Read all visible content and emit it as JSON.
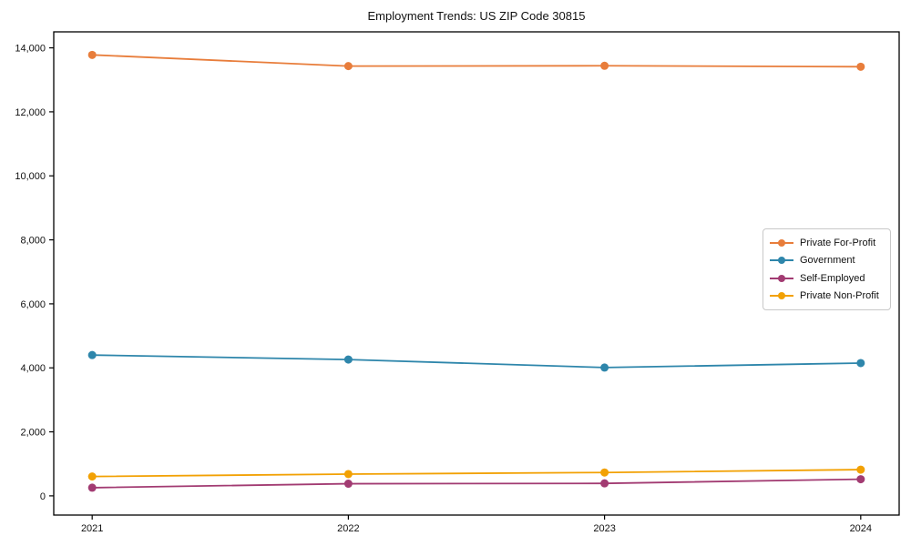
{
  "chart_data": {
    "type": "line",
    "title": "Employment Trends: US ZIP Code 30815",
    "categories": [
      "2021",
      "2022",
      "2023",
      "2024"
    ],
    "series": [
      {
        "name": "Private For-Profit",
        "color": "#E87D3B",
        "values": [
          13780,
          13430,
          13440,
          13410
        ]
      },
      {
        "name": "Government",
        "color": "#2E86AB",
        "values": [
          4400,
          4260,
          4010,
          4150
        ]
      },
      {
        "name": "Self-Employed",
        "color": "#A23B72",
        "values": [
          255,
          380,
          390,
          520
        ]
      },
      {
        "name": "Private Non-Profit",
        "color": "#F2A104",
        "values": [
          605,
          680,
          730,
          820
        ]
      }
    ],
    "xlabel": "",
    "ylabel": "",
    "ylim": [
      -600,
      14500
    ],
    "yticks": [
      0,
      2000,
      4000,
      6000,
      8000,
      10000,
      12000,
      14000
    ],
    "ytick_labels": [
      "0",
      "2,000",
      "4,000",
      "6,000",
      "8,000",
      "10,000",
      "12,000",
      "14,000"
    ],
    "legend_position": "center-right",
    "grid": false,
    "axis_color": "#000000",
    "background_color": "#ffffff"
  }
}
